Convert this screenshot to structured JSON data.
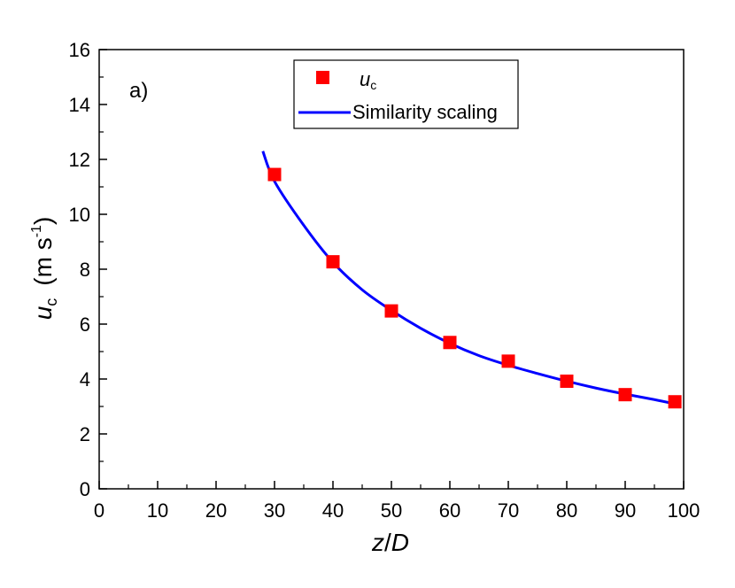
{
  "chart_data": {
    "type": "scatter",
    "panel_label": "a)",
    "xlabel": {
      "main": "z",
      "sep": "/",
      "italic": "D"
    },
    "ylabel": {
      "main": "u",
      "sub": "c",
      "unit_pre": "(m s",
      "unit_sup": "-1",
      "unit_post": ")"
    },
    "xlim": [
      0,
      100
    ],
    "ylim": [
      0,
      16
    ],
    "xticks": [
      0,
      10,
      20,
      30,
      40,
      50,
      60,
      70,
      80,
      90,
      100
    ],
    "yticks": [
      0,
      2,
      4,
      6,
      8,
      10,
      12,
      14,
      16
    ],
    "grid": false,
    "legend": {
      "position": "top-center"
    },
    "series": [
      {
        "name": "u_c",
        "label_main": "u",
        "label_sub": "c",
        "kind": "markers",
        "marker": "square",
        "color": "#ff0000",
        "x": [
          30,
          40,
          50,
          60,
          70,
          80,
          90,
          98.5
        ],
        "y": [
          11.45,
          8.27,
          6.48,
          5.33,
          4.65,
          3.92,
          3.43,
          3.17
        ]
      },
      {
        "name": "Similarity scaling",
        "label": "Similarity scaling",
        "kind": "line",
        "color": "#0000ff",
        "x": [
          28,
          30,
          35,
          40,
          45,
          50,
          55,
          60,
          65,
          70,
          75,
          80,
          85,
          90,
          95,
          99
        ],
        "y": [
          12.3,
          11.2,
          9.6,
          8.25,
          7.25,
          6.5,
          5.85,
          5.3,
          4.85,
          4.5,
          4.2,
          3.92,
          3.67,
          3.45,
          3.25,
          3.07
        ]
      }
    ]
  }
}
